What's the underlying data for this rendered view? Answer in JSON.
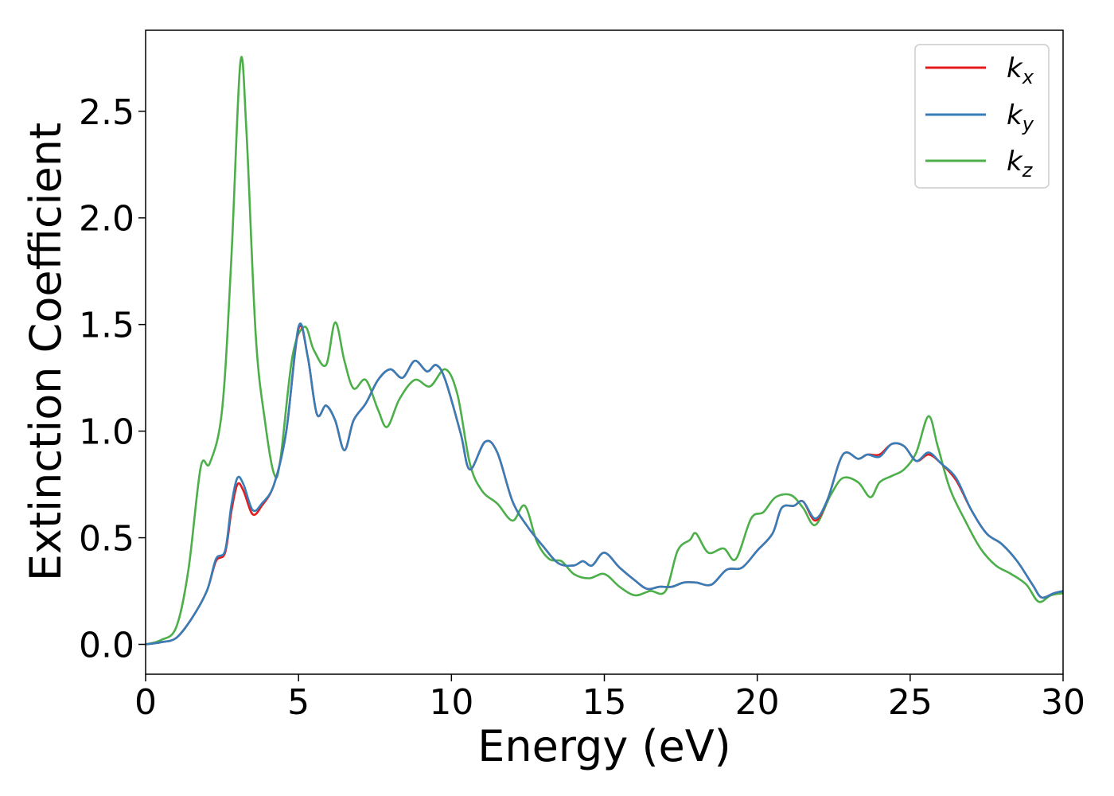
{
  "chart_data": {
    "type": "line",
    "xlabel": "Energy (eV)",
    "ylabel": "Extinction Coefficient",
    "xlim": [
      0,
      30
    ],
    "ylim": [
      -0.14,
      2.88
    ],
    "xticks": [
      "0",
      "5",
      "10",
      "15",
      "20",
      "25",
      "30"
    ],
    "yticks": [
      "0.0",
      "0.5",
      "1.0",
      "1.5",
      "2.0",
      "2.5"
    ],
    "grid": false,
    "legend": {
      "placement": "top-right",
      "entries": [
        {
          "base": "k",
          "sub": "x"
        },
        {
          "base": "k",
          "sub": "y"
        },
        {
          "base": "k",
          "sub": "z"
        }
      ]
    },
    "colors": {
      "kx": "#e41a1c",
      "ky": "#377eb8",
      "kz": "#4daf4a"
    },
    "series": [
      {
        "name": "k_x",
        "points": [
          [
            0,
            0
          ],
          [
            0.5,
            0.01
          ],
          [
            1,
            0.03
          ],
          [
            1.5,
            0.12
          ],
          [
            2,
            0.25
          ],
          [
            2.3,
            0.39
          ],
          [
            2.6,
            0.43
          ],
          [
            2.8,
            0.62
          ],
          [
            3,
            0.75
          ],
          [
            3.2,
            0.72
          ],
          [
            3.5,
            0.61
          ],
          [
            3.8,
            0.65
          ],
          [
            4.2,
            0.75
          ],
          [
            4.6,
            1.0
          ],
          [
            5,
            1.48
          ],
          [
            5.3,
            1.35
          ],
          [
            5.6,
            1.08
          ],
          [
            5.9,
            1.12
          ],
          [
            6.2,
            1.05
          ],
          [
            6.5,
            0.91
          ],
          [
            6.8,
            1.05
          ],
          [
            7.2,
            1.13
          ],
          [
            7.6,
            1.24
          ],
          [
            8,
            1.29
          ],
          [
            8.4,
            1.25
          ],
          [
            8.8,
            1.33
          ],
          [
            9.2,
            1.28
          ],
          [
            9.5,
            1.31
          ],
          [
            9.8,
            1.24
          ],
          [
            10.3,
            0.99
          ],
          [
            10.6,
            0.82
          ],
          [
            11.1,
            0.95
          ],
          [
            11.5,
            0.9
          ],
          [
            12,
            0.67
          ],
          [
            12.5,
            0.55
          ],
          [
            13,
            0.46
          ],
          [
            13.5,
            0.38
          ],
          [
            14,
            0.37
          ],
          [
            14.3,
            0.39
          ],
          [
            14.6,
            0.37
          ],
          [
            15,
            0.43
          ],
          [
            15.5,
            0.36
          ],
          [
            16,
            0.3
          ],
          [
            16.4,
            0.26
          ],
          [
            16.8,
            0.27
          ],
          [
            17.2,
            0.27
          ],
          [
            17.6,
            0.29
          ],
          [
            18,
            0.29
          ],
          [
            18.5,
            0.28
          ],
          [
            19,
            0.35
          ],
          [
            19.5,
            0.36
          ],
          [
            20,
            0.44
          ],
          [
            20.5,
            0.52
          ],
          [
            20.8,
            0.64
          ],
          [
            21.2,
            0.65
          ],
          [
            21.5,
            0.67
          ],
          [
            21.9,
            0.58
          ],
          [
            22.3,
            0.68
          ],
          [
            22.8,
            0.89
          ],
          [
            23.3,
            0.87
          ],
          [
            23.6,
            0.89
          ],
          [
            24,
            0.89
          ],
          [
            24.4,
            0.94
          ],
          [
            24.8,
            0.93
          ],
          [
            25.2,
            0.86
          ],
          [
            25.6,
            0.89
          ],
          [
            26,
            0.85
          ],
          [
            26.5,
            0.77
          ],
          [
            27,
            0.63
          ],
          [
            27.5,
            0.52
          ],
          [
            28,
            0.47
          ],
          [
            28.5,
            0.39
          ],
          [
            29,
            0.28
          ],
          [
            29.3,
            0.22
          ],
          [
            29.7,
            0.24
          ],
          [
            30,
            0.25
          ]
        ]
      },
      {
        "name": "k_y",
        "points": [
          [
            0,
            0
          ],
          [
            0.5,
            0.01
          ],
          [
            1,
            0.03
          ],
          [
            1.5,
            0.12
          ],
          [
            2,
            0.25
          ],
          [
            2.3,
            0.4
          ],
          [
            2.6,
            0.44
          ],
          [
            2.8,
            0.65
          ],
          [
            3,
            0.78
          ],
          [
            3.2,
            0.75
          ],
          [
            3.5,
            0.63
          ],
          [
            3.8,
            0.66
          ],
          [
            4.2,
            0.75
          ],
          [
            4.6,
            1.0
          ],
          [
            5,
            1.49
          ],
          [
            5.3,
            1.35
          ],
          [
            5.6,
            1.08
          ],
          [
            5.9,
            1.12
          ],
          [
            6.2,
            1.05
          ],
          [
            6.5,
            0.91
          ],
          [
            6.8,
            1.05
          ],
          [
            7.2,
            1.13
          ],
          [
            7.6,
            1.24
          ],
          [
            8,
            1.29
          ],
          [
            8.4,
            1.25
          ],
          [
            8.8,
            1.33
          ],
          [
            9.2,
            1.28
          ],
          [
            9.5,
            1.31
          ],
          [
            9.8,
            1.24
          ],
          [
            10.3,
            0.99
          ],
          [
            10.6,
            0.82
          ],
          [
            11.1,
            0.95
          ],
          [
            11.5,
            0.9
          ],
          [
            12,
            0.67
          ],
          [
            12.5,
            0.55
          ],
          [
            13,
            0.46
          ],
          [
            13.5,
            0.38
          ],
          [
            14,
            0.37
          ],
          [
            14.3,
            0.39
          ],
          [
            14.6,
            0.37
          ],
          [
            15,
            0.43
          ],
          [
            15.5,
            0.36
          ],
          [
            16,
            0.3
          ],
          [
            16.4,
            0.26
          ],
          [
            16.8,
            0.27
          ],
          [
            17.2,
            0.27
          ],
          [
            17.6,
            0.29
          ],
          [
            18,
            0.29
          ],
          [
            18.5,
            0.28
          ],
          [
            19,
            0.35
          ],
          [
            19.5,
            0.36
          ],
          [
            20,
            0.44
          ],
          [
            20.5,
            0.52
          ],
          [
            20.8,
            0.64
          ],
          [
            21.2,
            0.65
          ],
          [
            21.5,
            0.67
          ],
          [
            21.9,
            0.59
          ],
          [
            22.3,
            0.68
          ],
          [
            22.8,
            0.89
          ],
          [
            23.3,
            0.87
          ],
          [
            23.6,
            0.89
          ],
          [
            24,
            0.88
          ],
          [
            24.4,
            0.94
          ],
          [
            24.8,
            0.93
          ],
          [
            25.2,
            0.86
          ],
          [
            25.6,
            0.9
          ],
          [
            26,
            0.85
          ],
          [
            26.5,
            0.78
          ],
          [
            27,
            0.63
          ],
          [
            27.5,
            0.52
          ],
          [
            28,
            0.47
          ],
          [
            28.5,
            0.39
          ],
          [
            29,
            0.28
          ],
          [
            29.3,
            0.22
          ],
          [
            29.7,
            0.24
          ],
          [
            30,
            0.25
          ]
        ]
      },
      {
        "name": "k_z",
        "points": [
          [
            0,
            0
          ],
          [
            0.5,
            0.02
          ],
          [
            1,
            0.08
          ],
          [
            1.4,
            0.35
          ],
          [
            1.8,
            0.83
          ],
          [
            2.1,
            0.85
          ],
          [
            2.5,
            1.1
          ],
          [
            2.8,
            1.8
          ],
          [
            3.1,
            2.73
          ],
          [
            3.3,
            2.4
          ],
          [
            3.6,
            1.45
          ],
          [
            3.9,
            1.05
          ],
          [
            4.2,
            0.8
          ],
          [
            4.4,
            0.86
          ],
          [
            4.8,
            1.35
          ],
          [
            5.2,
            1.49
          ],
          [
            5.5,
            1.38
          ],
          [
            5.9,
            1.31
          ],
          [
            6.2,
            1.51
          ],
          [
            6.5,
            1.33
          ],
          [
            6.8,
            1.2
          ],
          [
            7.2,
            1.24
          ],
          [
            7.6,
            1.1
          ],
          [
            7.9,
            1.02
          ],
          [
            8.3,
            1.15
          ],
          [
            8.8,
            1.24
          ],
          [
            9.3,
            1.21
          ],
          [
            9.8,
            1.29
          ],
          [
            10.2,
            1.17
          ],
          [
            10.6,
            0.85
          ],
          [
            11,
            0.72
          ],
          [
            11.5,
            0.66
          ],
          [
            12,
            0.58
          ],
          [
            12.4,
            0.65
          ],
          [
            12.8,
            0.48
          ],
          [
            13.2,
            0.4
          ],
          [
            13.6,
            0.39
          ],
          [
            14,
            0.33
          ],
          [
            14.5,
            0.31
          ],
          [
            15,
            0.33
          ],
          [
            15.5,
            0.27
          ],
          [
            16,
            0.23
          ],
          [
            16.5,
            0.25
          ],
          [
            17,
            0.25
          ],
          [
            17.4,
            0.44
          ],
          [
            17.8,
            0.49
          ],
          [
            18,
            0.52
          ],
          [
            18.4,
            0.43
          ],
          [
            18.9,
            0.45
          ],
          [
            19.3,
            0.4
          ],
          [
            19.8,
            0.59
          ],
          [
            20.2,
            0.62
          ],
          [
            20.6,
            0.69
          ],
          [
            21.1,
            0.7
          ],
          [
            21.5,
            0.64
          ],
          [
            21.9,
            0.56
          ],
          [
            22.4,
            0.7
          ],
          [
            22.8,
            0.78
          ],
          [
            23.3,
            0.76
          ],
          [
            23.7,
            0.69
          ],
          [
            24,
            0.76
          ],
          [
            24.4,
            0.79
          ],
          [
            24.8,
            0.82
          ],
          [
            25.2,
            0.9
          ],
          [
            25.6,
            1.07
          ],
          [
            25.9,
            0.93
          ],
          [
            26.3,
            0.73
          ],
          [
            26.8,
            0.58
          ],
          [
            27.3,
            0.45
          ],
          [
            27.8,
            0.37
          ],
          [
            28.3,
            0.33
          ],
          [
            28.8,
            0.28
          ],
          [
            29.2,
            0.2
          ],
          [
            29.6,
            0.23
          ],
          [
            30,
            0.24
          ]
        ]
      }
    ]
  }
}
